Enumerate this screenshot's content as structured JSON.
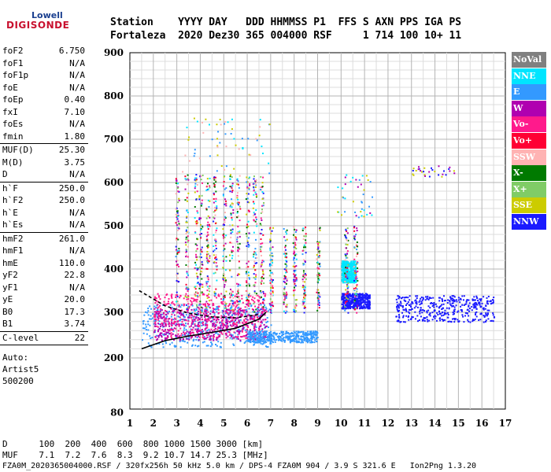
{
  "logo": {
    "line1": "Lowell",
    "line2": "DIGISONDE"
  },
  "header": {
    "line1": "Station    YYYY DAY   DDD HHMMSS P1  FFS S AXN PPS IGA PS",
    "line2": "Fortaleza  2020 Dez30 365 004000 RSF     1 714 100 10+ 11"
  },
  "params": {
    "group1": [
      {
        "k": "foF2",
        "v": "6.750"
      },
      {
        "k": "foF1",
        "v": "N/A"
      },
      {
        "k": "foF1p",
        "v": "N/A"
      },
      {
        "k": "foE",
        "v": "N/A"
      },
      {
        "k": "foEp",
        "v": "0.40"
      },
      {
        "k": "fxI",
        "v": "7.10"
      },
      {
        "k": "foEs",
        "v": "N/A"
      },
      {
        "k": "fmin",
        "v": "1.80"
      }
    ],
    "group2": [
      {
        "k": "MUF(D)",
        "v": "25.30"
      },
      {
        "k": "M(D)",
        "v": "3.75"
      },
      {
        "k": "D",
        "v": "N/A"
      }
    ],
    "group3": [
      {
        "k": "h`F",
        "v": "250.0"
      },
      {
        "k": "h`F2",
        "v": "250.0"
      },
      {
        "k": "h`E",
        "v": "N/A"
      },
      {
        "k": "h`Es",
        "v": "N/A"
      }
    ],
    "group4": [
      {
        "k": "hmF2",
        "v": "261.0"
      },
      {
        "k": "hmF1",
        "v": "N/A"
      },
      {
        "k": "hmE",
        "v": "110.0"
      },
      {
        "k": "yF2",
        "v": "22.8"
      },
      {
        "k": "yF1",
        "v": "N/A"
      },
      {
        "k": "yE",
        "v": "20.0"
      },
      {
        "k": "B0",
        "v": "17.3"
      },
      {
        "k": "B1",
        "v": "3.74"
      }
    ],
    "group5": [
      {
        "k": "C-level",
        "v": "22"
      }
    ],
    "auto": [
      "Auto:",
      "Artist5",
      "500200"
    ]
  },
  "legend": [
    {
      "label": "NoVal",
      "color": "#808080"
    },
    {
      "label": "NNE",
      "color": "#00e5ff"
    },
    {
      "label": "E",
      "color": "#3399ff"
    },
    {
      "label": "W",
      "color": "#b000b0"
    },
    {
      "label": "Vo-",
      "color": "#ff1a8c"
    },
    {
      "label": "Vo+",
      "color": "#ff0033"
    },
    {
      "label": "SSW",
      "color": "#ffb3b3"
    },
    {
      "label": "X-",
      "color": "#007a00"
    },
    {
      "label": "X+",
      "color": "#80cc66"
    },
    {
      "label": "SSE",
      "color": "#cccc00"
    },
    {
      "label": "NNW",
      "color": "#1a1aff"
    }
  ],
  "footer": {
    "line1": "D      100  200  400  600  800 1000 1500 3000 [km]",
    "line2": "MUF    7.1  7.2  7.6  8.3  9.2 10.7 14.7 25.3 [MHz]",
    "line3": "FZA0M_2020365004000.RSF / 320fx256h 50 kHz 5.0 km / DPS-4 FZA0M 904 / 3.9 S 321.6 E   Ion2Png 1.3.20"
  },
  "chart_data": {
    "type": "scatter",
    "xlabel": "",
    "ylabel": "",
    "xlim": [
      1,
      17
    ],
    "ylim": [
      80,
      900
    ],
    "x_ticks": [
      1,
      2,
      3,
      4,
      5,
      6,
      7,
      8,
      9,
      10,
      11,
      12,
      13,
      14,
      15,
      16,
      17
    ],
    "y_ticks": [
      80,
      200,
      300,
      400,
      500,
      600,
      700,
      800,
      900
    ],
    "grid": true,
    "legend_placement": "right",
    "profile_curve": {
      "x": [
        1.5,
        2.5,
        3.5,
        4.5,
        5.5,
        6.5,
        6.8
      ],
      "y": [
        220,
        238,
        248,
        256,
        265,
        285,
        300
      ]
    },
    "trace_curve": {
      "x": [
        1.4,
        2.5,
        3.5,
        4.5,
        5.5,
        6.5
      ],
      "y": [
        350,
        315,
        298,
        290,
        288,
        295
      ]
    },
    "clusters": [
      {
        "name": "E",
        "x": [
          1.5,
          7
        ],
        "y": [
          225,
          320
        ]
      },
      {
        "name": "W",
        "x": [
          2,
          6.8
        ],
        "y": [
          240,
          310
        ]
      },
      {
        "name": "Vo-",
        "x": [
          2,
          6.8
        ],
        "y": [
          245,
          345
        ]
      },
      {
        "name": "E",
        "x": [
          6,
          9
        ],
        "y": [
          235,
          260
        ]
      },
      {
        "name": "NNW",
        "x": [
          10,
          11.2
        ],
        "y": [
          310,
          345
        ]
      },
      {
        "name": "NNW",
        "x": [
          12.3,
          16.5
        ],
        "y": [
          280,
          340
        ]
      },
      {
        "name": "NNE",
        "x": [
          10,
          10.6
        ],
        "y": [
          370,
          420
        ]
      }
    ]
  }
}
